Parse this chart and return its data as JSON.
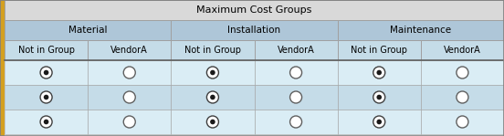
{
  "title": "Maximum Cost Groups",
  "groups": [
    "Material",
    "Installation",
    "Maintenance"
  ],
  "subheaders": [
    "Not in Group",
    "VendorA",
    "Not in Group",
    "VendorA",
    "Not in Group",
    "VendorA"
  ],
  "num_data_rows": 3,
  "radio_selected_cols": [
    0,
    2,
    4
  ],
  "radio_unselected_cols": [
    1,
    3,
    5
  ],
  "title_bg": "#d9d9d9",
  "group_header_bg": "#aec6d8",
  "subheader_bg": "#c5dce8",
  "data_row_bg_even": "#daedf5",
  "data_row_bg_odd": "#c5dce8",
  "border_color": "#a0a0a0",
  "left_border_color": "#d4a020",
  "text_color": "#000000",
  "title_fontsize": 8,
  "header_fontsize": 7.5,
  "subheader_fontsize": 7,
  "fig_width": 5.52,
  "fig_height": 1.49,
  "dpi": 100
}
